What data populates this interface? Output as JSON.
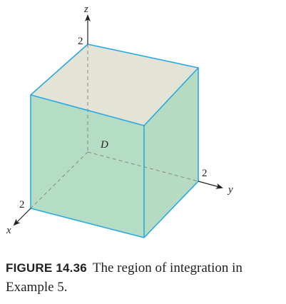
{
  "figure": {
    "axes": {
      "x_label": "x",
      "y_label": "y",
      "z_label": "z"
    },
    "ticks": {
      "x_tick": "2",
      "y_tick": "2",
      "z_tick": "2"
    },
    "region_label": "D",
    "colors": {
      "edge": "#29a9e0",
      "top_face": "#e3e3d6",
      "front_face": "#b5ddc5",
      "right_face": "#b6dbc3",
      "hidden_line": "#888888",
      "axis": "#231f20"
    }
  },
  "caption": {
    "label": "FIGURE 14.36",
    "text": "The region of integration in Example 5."
  }
}
